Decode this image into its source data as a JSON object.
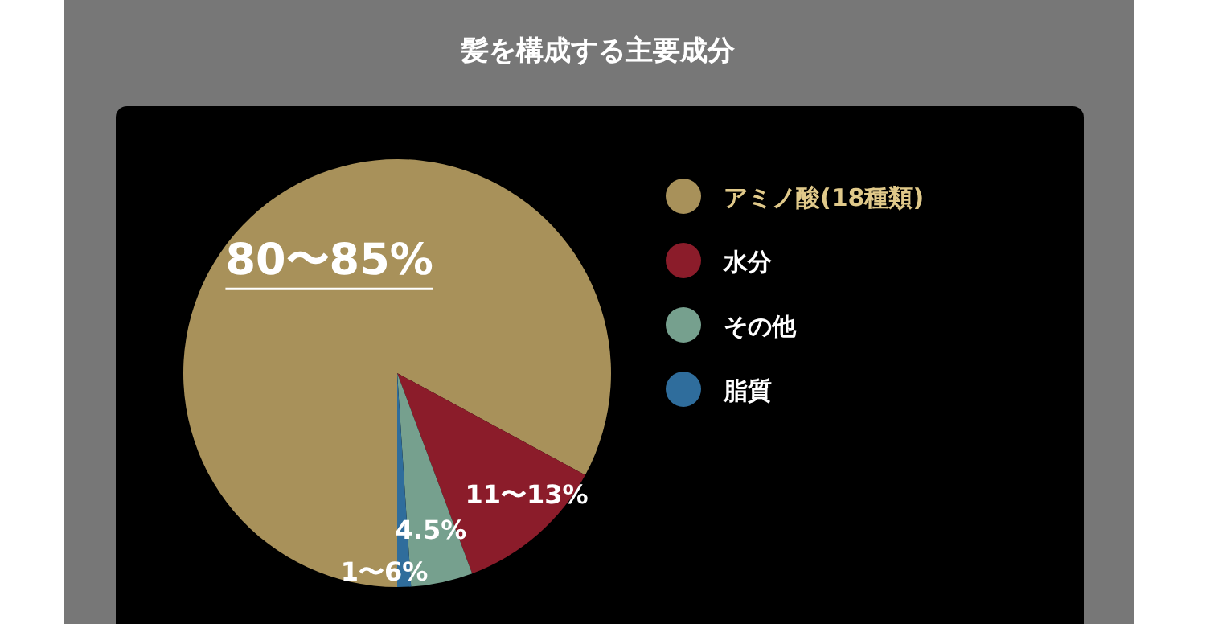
{
  "chart_data": {
    "type": "pie",
    "title": "髪を構成する主要成分",
    "categories": [
      "アミノ酸(18種類)",
      "水分",
      "その他",
      "脂質"
    ],
    "values": [
      80,
      11,
      4.5,
      1
    ],
    "colors": [
      "#a8915a",
      "#8b1c2a",
      "#76a08e",
      "#2f6d9c"
    ],
    "value_labels": [
      "80〜85%",
      "11〜13%",
      "4.5%",
      "1〜6%"
    ],
    "legend": "right"
  }
}
